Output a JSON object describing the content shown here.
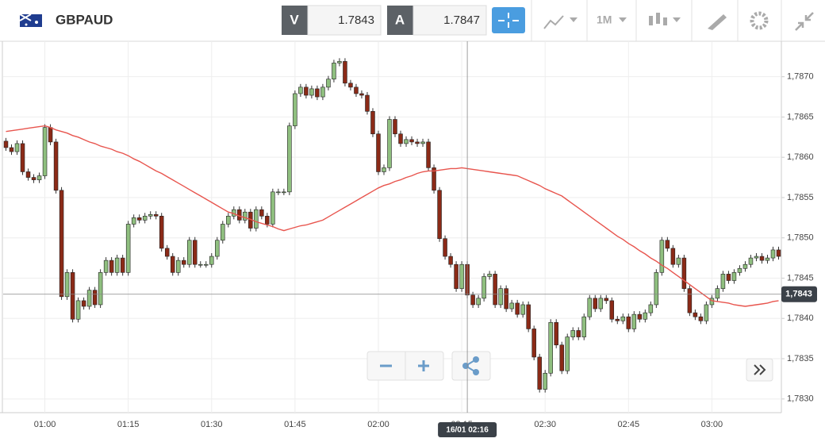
{
  "toolbar": {
    "symbol": "GBPAUD",
    "sell_label": "V",
    "sell_price": "1.7843",
    "buy_label": "A",
    "buy_price": "1.7847",
    "interval": "1M"
  },
  "chart_data": {
    "type": "candlestick",
    "categories": [
      null,
      null,
      null,
      null,
      null,
      null,
      null,
      "01:00",
      null,
      null,
      null,
      null,
      null,
      null,
      null,
      null,
      null,
      null,
      null,
      null,
      null,
      null,
      "01:15",
      null,
      null,
      null,
      null,
      null,
      null,
      null,
      null,
      null,
      null,
      null,
      null,
      null,
      null,
      "01:30",
      null,
      null,
      null,
      null,
      null,
      null,
      null,
      null,
      null,
      null,
      null,
      null,
      null,
      null,
      "01:45",
      null,
      null,
      null,
      null,
      null,
      null,
      null,
      null,
      null,
      null,
      null,
      null,
      null,
      null,
      "02:00",
      null,
      null,
      null,
      null,
      null,
      null,
      null,
      null,
      null,
      null,
      null,
      null,
      null,
      null,
      "02:15",
      null,
      null,
      null,
      null,
      null,
      null,
      null,
      null,
      null,
      null,
      null,
      null,
      null,
      null,
      "02:30",
      null,
      null,
      null,
      null,
      null,
      null,
      null,
      null,
      null,
      null,
      null,
      null,
      null,
      null,
      "02:45",
      null,
      null,
      null,
      null,
      null,
      null,
      null,
      null,
      null,
      null,
      null,
      null,
      null,
      null,
      "03:00",
      null,
      null,
      null,
      null,
      null,
      null,
      null,
      null,
      null,
      null,
      null,
      null
    ],
    "open": [
      1.7862,
      1.78612,
      1.78607,
      1.78617,
      1.78582,
      1.78575,
      1.78572,
      1.78577,
      1.78637,
      1.78619,
      1.78559,
      1.78427,
      1.78457,
      1.78399,
      1.78422,
      1.78415,
      1.78435,
      1.78417,
      1.78457,
      1.78472,
      1.78457,
      1.78475,
      1.78457,
      1.78517,
      1.78525,
      1.78522,
      1.78527,
      1.78529,
      1.78527,
      1.78487,
      1.78477,
      1.78457,
      1.78472,
      1.78467,
      1.78497,
      1.78467,
      1.78467,
      1.78467,
      1.78477,
      1.78497,
      1.78517,
      1.78527,
      1.78535,
      1.78522,
      1.78532,
      1.78512,
      1.78535,
      1.78527,
      1.78517,
      1.78557,
      1.78557,
      1.78557,
      1.78639,
      1.78679,
      1.78687,
      1.78677,
      1.78685,
      1.78675,
      1.78687,
      1.78697,
      1.78717,
      1.78719,
      1.78692,
      1.78687,
      1.78679,
      1.78677,
      1.78657,
      1.78629,
      1.78582,
      1.78587,
      1.78647,
      1.78629,
      1.78617,
      1.78622,
      1.78619,
      1.78617,
      1.78619,
      1.78587,
      1.78559,
      1.78499,
      1.78477,
      1.78467,
      1.78437,
      1.78467,
      1.78429,
      1.78417,
      1.78425,
      1.78452,
      1.78455,
      1.78417,
      1.78437,
      1.78412,
      1.78419,
      1.78405,
      1.78417,
      1.78387,
      1.78352,
      1.78312,
      1.78332,
      1.78395,
      1.78367,
      1.78335,
      1.78377,
      1.78385,
      1.78377,
      1.78402,
      1.78425,
      1.78412,
      1.78425,
      1.78422,
      1.78399,
      1.78397,
      1.78402,
      1.78387,
      1.78405,
      1.78399,
      1.78407,
      1.78417,
      1.78457,
      1.78497,
      1.78487,
      1.78467,
      1.78475,
      1.78437,
      1.78407,
      1.78402,
      1.78397,
      1.78417,
      1.78425,
      1.78437,
      1.78455,
      1.78447,
      1.78457,
      1.78462,
      1.78467,
      1.78475,
      1.78477,
      1.78472,
      1.78475,
      1.78485
    ],
    "high": [
      1.78624,
      1.78616,
      1.78621,
      1.78621,
      1.78586,
      1.78579,
      1.78581,
      1.78641,
      1.78641,
      1.78623,
      1.78563,
      1.78461,
      1.78461,
      1.78426,
      1.78426,
      1.78439,
      1.78439,
      1.78461,
      1.78476,
      1.78476,
      1.78479,
      1.78479,
      1.78521,
      1.78529,
      1.78529,
      1.78531,
      1.78533,
      1.78533,
      1.78531,
      1.78491,
      1.78481,
      1.78476,
      1.78476,
      1.78501,
      1.78501,
      1.78471,
      1.78471,
      1.78481,
      1.78501,
      1.78521,
      1.78531,
      1.78539,
      1.78539,
      1.78536,
      1.78536,
      1.78539,
      1.78539,
      1.78531,
      1.78561,
      1.78561,
      1.78561,
      1.78643,
      1.78683,
      1.78691,
      1.78691,
      1.78689,
      1.78689,
      1.78691,
      1.78701,
      1.78721,
      1.78723,
      1.78723,
      1.78696,
      1.78691,
      1.78683,
      1.78681,
      1.78661,
      1.78633,
      1.78591,
      1.78651,
      1.78651,
      1.78633,
      1.78626,
      1.78626,
      1.78623,
      1.78623,
      1.78623,
      1.78591,
      1.78563,
      1.78503,
      1.78481,
      1.78471,
      1.78471,
      1.78471,
      1.78433,
      1.78429,
      1.78456,
      1.78459,
      1.78459,
      1.78441,
      1.78441,
      1.78423,
      1.78423,
      1.78421,
      1.78421,
      1.78391,
      1.78356,
      1.78336,
      1.78399,
      1.78399,
      1.78371,
      1.78381,
      1.78389,
      1.78389,
      1.78406,
      1.78429,
      1.78429,
      1.78429,
      1.78429,
      1.78426,
      1.78403,
      1.78406,
      1.78406,
      1.78409,
      1.78409,
      1.78411,
      1.78421,
      1.78461,
      1.78501,
      1.78501,
      1.78491,
      1.78479,
      1.78479,
      1.78441,
      1.78411,
      1.78406,
      1.78421,
      1.78429,
      1.78441,
      1.78459,
      1.78459,
      1.78461,
      1.78466,
      1.78471,
      1.78479,
      1.78481,
      1.78481,
      1.78479,
      1.78489,
      1.78489
    ],
    "low": [
      1.78608,
      1.78603,
      1.78603,
      1.78578,
      1.78571,
      1.78568,
      1.78568,
      1.78573,
      1.78615,
      1.78555,
      1.78423,
      1.78423,
      1.78395,
      1.78395,
      1.78411,
      1.78411,
      1.78413,
      1.78413,
      1.78453,
      1.78453,
      1.78453,
      1.78453,
      1.78453,
      1.78513,
      1.78518,
      1.78518,
      1.78523,
      1.78523,
      1.78483,
      1.78473,
      1.78453,
      1.78453,
      1.78463,
      1.78463,
      1.78463,
      1.78463,
      1.78463,
      1.78463,
      1.78473,
      1.78493,
      1.78513,
      1.78523,
      1.78518,
      1.78518,
      1.78508,
      1.78508,
      1.78523,
      1.78513,
      1.78513,
      1.78553,
      1.78553,
      1.78553,
      1.78635,
      1.78675,
      1.78673,
      1.78673,
      1.78671,
      1.78671,
      1.78683,
      1.78693,
      1.78713,
      1.78688,
      1.78683,
      1.78675,
      1.78673,
      1.78653,
      1.78625,
      1.78578,
      1.78578,
      1.78583,
      1.78625,
      1.78613,
      1.78613,
      1.78615,
      1.78613,
      1.78613,
      1.78583,
      1.78555,
      1.78495,
      1.78473,
      1.78463,
      1.78433,
      1.78433,
      1.78425,
      1.78413,
      1.78413,
      1.78421,
      1.78448,
      1.78413,
      1.78413,
      1.78408,
      1.78408,
      1.78401,
      1.78401,
      1.78383,
      1.78348,
      1.78308,
      1.78308,
      1.78328,
      1.78363,
      1.78331,
      1.78331,
      1.78373,
      1.78373,
      1.78373,
      1.78398,
      1.78408,
      1.78408,
      1.78418,
      1.78395,
      1.78393,
      1.78393,
      1.78383,
      1.78383,
      1.78395,
      1.78395,
      1.78403,
      1.78413,
      1.78453,
      1.78483,
      1.78463,
      1.78463,
      1.78433,
      1.78403,
      1.78398,
      1.78393,
      1.78393,
      1.78413,
      1.78421,
      1.78433,
      1.78443,
      1.78443,
      1.78453,
      1.78458,
      1.78463,
      1.78471,
      1.78468,
      1.78468,
      1.78471,
      1.78473
    ],
    "close": [
      1.78612,
      1.78607,
      1.78617,
      1.78582,
      1.78575,
      1.78572,
      1.78577,
      1.78637,
      1.78619,
      1.78559,
      1.78427,
      1.78457,
      1.78399,
      1.78422,
      1.78415,
      1.78435,
      1.78417,
      1.78457,
      1.78472,
      1.78457,
      1.78475,
      1.78457,
      1.78517,
      1.78525,
      1.78522,
      1.78527,
      1.78529,
      1.78527,
      1.78487,
      1.78477,
      1.78457,
      1.78472,
      1.78467,
      1.78497,
      1.78467,
      1.78467,
      1.78467,
      1.78477,
      1.78497,
      1.78517,
      1.78527,
      1.78535,
      1.78522,
      1.78532,
      1.78512,
      1.78535,
      1.78527,
      1.78517,
      1.78557,
      1.78557,
      1.78557,
      1.78639,
      1.78679,
      1.78687,
      1.78677,
      1.78685,
      1.78675,
      1.78687,
      1.78697,
      1.78717,
      1.78719,
      1.78692,
      1.78687,
      1.78679,
      1.78677,
      1.78657,
      1.78629,
      1.78582,
      1.78587,
      1.78647,
      1.78629,
      1.78617,
      1.78622,
      1.78619,
      1.78617,
      1.78619,
      1.78587,
      1.78559,
      1.78499,
      1.78477,
      1.78467,
      1.78437,
      1.78467,
      1.78429,
      1.78417,
      1.78425,
      1.78452,
      1.78455,
      1.78417,
      1.78437,
      1.78412,
      1.78419,
      1.78405,
      1.78417,
      1.78387,
      1.78352,
      1.78312,
      1.78332,
      1.78395,
      1.78367,
      1.78335,
      1.78377,
      1.78385,
      1.78377,
      1.78402,
      1.78425,
      1.78412,
      1.78425,
      1.78422,
      1.78399,
      1.78397,
      1.78402,
      1.78387,
      1.78405,
      1.78399,
      1.78407,
      1.78417,
      1.78457,
      1.78497,
      1.78487,
      1.78467,
      1.78475,
      1.78437,
      1.78407,
      1.78402,
      1.78397,
      1.78417,
      1.78425,
      1.78437,
      1.78455,
      1.78447,
      1.78457,
      1.78462,
      1.78467,
      1.78475,
      1.78477,
      1.78472,
      1.78475,
      1.78485,
      1.78477
    ],
    "up_color": "#8fbf7f",
    "down_color": "#8b2a17",
    "moving_average": {
      "color": "#e8554e",
      "values": [
        1.78632,
        1.78633,
        1.78634,
        1.78635,
        1.78636,
        1.78637,
        1.78638,
        1.78639,
        1.78637,
        1.78634,
        1.78632,
        1.7863,
        1.78627,
        1.78625,
        1.78622,
        1.78619,
        1.78617,
        1.78614,
        1.78612,
        1.7861,
        1.78607,
        1.78605,
        1.78602,
        1.78598,
        1.78595,
        1.78591,
        1.78587,
        1.78583,
        1.7858,
        1.78576,
        1.78572,
        1.78568,
        1.78564,
        1.7856,
        1.78556,
        1.78552,
        1.78548,
        1.78544,
        1.7854,
        1.78536,
        1.78532,
        1.7853,
        1.78527,
        1.78525,
        1.78523,
        1.7852,
        1.78518,
        1.78516,
        1.78514,
        1.78511,
        1.78509,
        1.78511,
        1.78513,
        1.78515,
        1.78516,
        1.78518,
        1.7852,
        1.78522,
        1.78526,
        1.7853,
        1.78534,
        1.78538,
        1.78542,
        1.78546,
        1.7855,
        1.78554,
        1.78558,
        1.78562,
        1.78565,
        1.78567,
        1.7857,
        1.78572,
        1.78575,
        1.78577,
        1.7858,
        1.78582,
        1.78583,
        1.78583,
        1.78584,
        1.78585,
        1.78586,
        1.78586,
        1.78587,
        1.78586,
        1.78585,
        1.78584,
        1.78583,
        1.78582,
        1.78581,
        1.7858,
        1.78579,
        1.78578,
        1.78577,
        1.78574,
        1.78571,
        1.78568,
        1.78565,
        1.78561,
        1.78558,
        1.78555,
        1.78552,
        1.78547,
        1.78542,
        1.78537,
        1.78532,
        1.78527,
        1.78522,
        1.78517,
        1.78512,
        1.78507,
        1.78502,
        1.78498,
        1.78493,
        1.78489,
        1.78484,
        1.7848,
        1.78475,
        1.78471,
        1.78466,
        1.78462,
        1.78457,
        1.78452,
        1.78447,
        1.78442,
        1.78437,
        1.78432,
        1.78427,
        1.78422,
        1.78421,
        1.7842,
        1.78419,
        1.78417,
        1.78416,
        1.78415,
        1.78416,
        1.78417,
        1.78418,
        1.78419,
        1.78421,
        1.78422
      ]
    },
    "ylim": [
      1.78283,
      1.78744
    ],
    "yticks": [
      {
        "value": 1.783,
        "label": "1,7830"
      },
      {
        "value": 1.7835,
        "label": "1,7835"
      },
      {
        "value": 1.784,
        "label": "1,7840"
      },
      {
        "value": 1.7845,
        "label": "1,7845"
      },
      {
        "value": 1.785,
        "label": "1,7850"
      },
      {
        "value": 1.7855,
        "label": "1,7855"
      },
      {
        "value": 1.786,
        "label": "1,7860"
      },
      {
        "value": 1.7865,
        "label": "1,7865"
      },
      {
        "value": 1.787,
        "label": "1,7870"
      }
    ],
    "grid": true,
    "crosshair": {
      "x_index": 83,
      "x_label": "16/01 02:16",
      "y": {
        "value": 1.7843,
        "label": "1,7843"
      }
    }
  }
}
